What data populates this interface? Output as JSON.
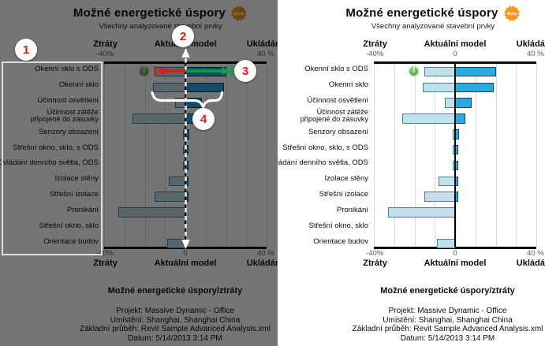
{
  "chart": {
    "title": "Možné energetické úspory",
    "beta_label": "Beta",
    "subtitle": "Všechny analyzované stavební prvky",
    "axis": {
      "loss_label": "Ztráty",
      "center_label": "Aktuální model",
      "save_label": "Ukládání",
      "min_value": "-40%",
      "zero_value": "0",
      "max_value": "40 %"
    },
    "caption": "Možné energetické úspory/ztráty",
    "info_lines": [
      "Projekt: Massive Dynamic - Office",
      "Umístění: Shanghai, Shanghai China",
      "Základní průběh: Revit Sample Advanced Analysis.xml",
      "Datum: 5/14/2013 3:14 PM"
    ]
  },
  "chart_data": {
    "type": "bar",
    "orientation": "horizontal-tornado",
    "title": "Možné energetické úspory",
    "subtitle": "Všechny analyzované stavební prvky",
    "categories": [
      "Okenní sklo s ODS",
      "Okenní sklo",
      "Účinnost osvětlení",
      "Účinnost zátěže\npřipojené do zásuvky",
      "Senzory obsazení",
      "Střešní okno, sklo, s ODS",
      "Ovládání denního světla, ODS",
      "Izolace stěny",
      "Střešní izolace",
      "Pronikání",
      "Střešní okno, sklo",
      "Orientace budov"
    ],
    "series": [
      {
        "name": "Ztráty",
        "color": "#c2dfec",
        "values": [
          -15,
          -16,
          -5,
          -26,
          -1,
          -1,
          -1,
          -8,
          -15,
          -33,
          0,
          -9
        ]
      },
      {
        "name": "Ukládání",
        "color": "#29aae1",
        "values": [
          20,
          19,
          8,
          5,
          2,
          1.5,
          1.5,
          1.5,
          1.5,
          0,
          0,
          0
        ]
      }
    ],
    "xlim": [
      -40,
      40
    ],
    "x_tick_step": 10,
    "x_unit": "%",
    "grid": true,
    "zero_line": true,
    "warning_icon_row": 0,
    "legend_position": "none"
  },
  "icons": {
    "warning_glyph": "!",
    "beta_badge_color": "#f7941e"
  },
  "annotations": {
    "callouts": [
      "1",
      "2",
      "3",
      "4"
    ],
    "number_color": "#dd1a22",
    "loss_arrow_color": "#e8151c",
    "save_arrow_color": "#0aa14e"
  }
}
